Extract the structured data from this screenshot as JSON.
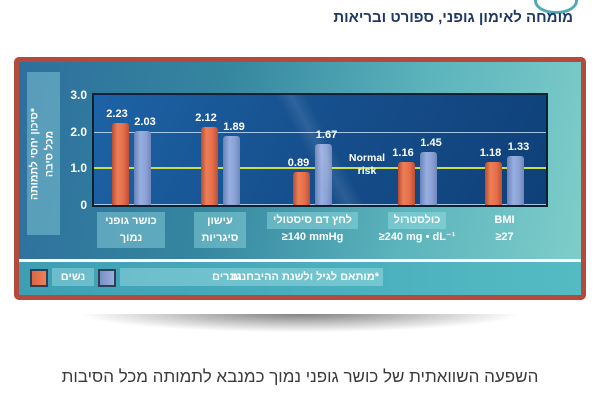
{
  "header": {
    "tagline": "מומחה לאימון גופני, ספורט ובריאות"
  },
  "caption": "השפעה השוואתית של כושר גופני נמוך כמנבא לתמותה מכל הסיבות",
  "colors": {
    "frame_border": "#B34A3C",
    "women_bar": "#E76E4B",
    "men_bar": "#8CA2D6",
    "normal_risk_line": "#C9DC4A",
    "plot_background": "#164F8D",
    "chart_background_teal": "#5BB3BC",
    "legend_strip": "#47ADC0",
    "header_text": "#203864"
  },
  "chart_data": {
    "type": "bar",
    "title": "",
    "ylabel": "*סיכון יחסי לתמותה מכל סיבה",
    "ylabel_lines": [
      "*סיכון יחסי לתמותה",
      "מכל סיבה"
    ],
    "ylim": [
      0,
      3
    ],
    "yticks": [
      "3.0",
      "2.0",
      "1.0",
      "0"
    ],
    "grid": "horizontal",
    "reference_line": {
      "value": 1.0,
      "label": "Normal risk",
      "label_lines": [
        "Normal",
        "risk"
      ],
      "color": "#C9DC4A"
    },
    "categories": [
      {
        "lines": [
          "כושר גופני",
          "נמוך"
        ],
        "box": "block"
      },
      {
        "lines": [
          "עישון",
          "סיגריות"
        ],
        "box": "block"
      },
      {
        "lines": [
          "לחץ דם סיסטולי",
          "≥140 mmHg"
        ],
        "box": "first-line"
      },
      {
        "lines": [
          "כולסטרול",
          "≥240 mg • dL⁻¹"
        ],
        "box": "first-line"
      },
      {
        "lines": [
          "BMI",
          "≥27"
        ],
        "box": "none"
      }
    ],
    "series": [
      {
        "name": "נשים",
        "color_key": "women_bar",
        "values": [
          2.23,
          2.12,
          0.89,
          1.16,
          1.18
        ]
      },
      {
        "name": "גברים",
        "color_key": "men_bar",
        "values": [
          2.03,
          1.89,
          1.67,
          1.45,
          1.33
        ]
      }
    ],
    "legend": {
      "position": "bottom",
      "women_label": "נשים",
      "men_label": "גברים",
      "footnote": "*מותאם לגיל ולשנת ההיבחנות"
    }
  }
}
